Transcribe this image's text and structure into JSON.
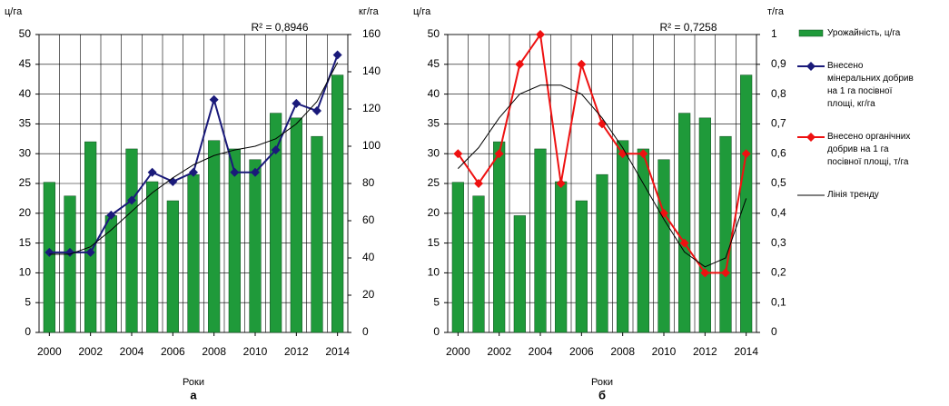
{
  "chart_data": [
    {
      "type": "bar",
      "sub_label": "а",
      "x_label": "Роки",
      "y_label": "ц/га",
      "y2_label": "кг/га",
      "annotation": "R² = 0,8946",
      "x": [
        2000,
        2001,
        2002,
        2003,
        2004,
        2005,
        2006,
        2007,
        2008,
        2009,
        2010,
        2011,
        2012,
        2013,
        2014
      ],
      "xlim": [
        1999.5,
        2014.5
      ],
      "xticks": [
        2000,
        2002,
        2004,
        2006,
        2008,
        2010,
        2012,
        2014
      ],
      "ylim": [
        0,
        50
      ],
      "yticks": [
        0,
        5,
        10,
        15,
        20,
        25,
        30,
        35,
        40,
        45,
        50
      ],
      "y2lim": [
        0,
        160
      ],
      "y2ticks": [
        0,
        20,
        40,
        60,
        80,
        100,
        120,
        140,
        160
      ],
      "grid": true,
      "series": [
        {
          "type": "bar",
          "color": "#1f9a3a",
          "values": [
            25.2,
            22.9,
            32,
            19.6,
            30.8,
            25.3,
            22.1,
            26.5,
            32.2,
            30.8,
            29,
            36.8,
            36,
            32.9,
            43.2
          ]
        },
        {
          "type": "line",
          "name": "Внесено мінеральних добрив на 1 га посівної площі, кг/га",
          "color": "#1a1a7a",
          "marker": "diamond",
          "axis": "y2",
          "values": [
            43,
            43,
            43,
            63,
            71,
            86,
            81,
            86,
            125,
            86,
            86,
            98,
            123,
            119,
            149
          ]
        },
        {
          "type": "line",
          "color": "#000000",
          "marker": "none",
          "axis": "y2",
          "values": [
            42,
            42,
            46,
            55,
            65,
            75,
            83,
            90,
            95,
            98,
            100,
            104,
            112,
            124,
            145
          ]
        }
      ]
    },
    {
      "type": "bar",
      "sub_label": "б",
      "x_label": "Роки",
      "y_label": "ц/га",
      "y2_label": "т/га",
      "annotation": "R² = 0,7258",
      "x": [
        2000,
        2001,
        2002,
        2003,
        2004,
        2005,
        2006,
        2007,
        2008,
        2009,
        2010,
        2011,
        2012,
        2013,
        2014
      ],
      "xlim": [
        1999.5,
        2014.5
      ],
      "xticks": [
        2000,
        2002,
        2004,
        2006,
        2008,
        2010,
        2012,
        2014
      ],
      "ylim": [
        0,
        50
      ],
      "yticks": [
        0,
        5,
        10,
        15,
        20,
        25,
        30,
        35,
        40,
        45,
        50
      ],
      "y2lim": [
        0,
        1
      ],
      "y2ticks": [
        0,
        {
          "value": 0.1,
          "label": "0,1"
        },
        {
          "value": 0.2,
          "label": "0,2"
        },
        {
          "value": 0.3,
          "label": "0,3"
        },
        {
          "value": 0.4,
          "label": "0,4"
        },
        {
          "value": 0.5,
          "label": "0,5"
        },
        {
          "value": 0.6,
          "label": "0,6"
        },
        {
          "value": 0.7,
          "label": "0,7"
        },
        {
          "value": 0.8,
          "label": "0,8"
        },
        {
          "value": 0.9,
          "label": "0,9"
        },
        1
      ],
      "grid": true,
      "series": [
        {
          "type": "bar",
          "name": "Урожайність, ц/га",
          "color": "#1f9a3a",
          "values": [
            25.2,
            22.9,
            32,
            19.6,
            30.8,
            25.3,
            22.1,
            26.5,
            32.2,
            30.8,
            29,
            36.8,
            36,
            32.9,
            43.2
          ]
        },
        {
          "type": "line",
          "name": "Внесено органічних добрив на 1 га посівної площі, т/га",
          "color": "#ee1111",
          "marker": "diamond",
          "axis": "y2",
          "values": [
            0.6,
            0.5,
            0.6,
            0.9,
            1.0,
            0.5,
            0.9,
            0.7,
            0.6,
            0.6,
            0.4,
            0.3,
            0.2,
            0.2,
            0.6
          ]
        },
        {
          "type": "line",
          "name": "Лінія тренду",
          "color": "#000000",
          "marker": "none",
          "axis": "y2",
          "values": [
            0.55,
            0.62,
            0.72,
            0.8,
            0.83,
            0.83,
            0.8,
            0.72,
            0.62,
            0.5,
            0.38,
            0.27,
            0.22,
            0.25,
            0.45
          ]
        }
      ]
    }
  ]
}
